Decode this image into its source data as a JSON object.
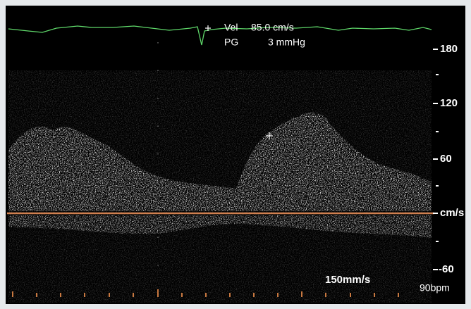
{
  "readout": {
    "vel_label": "Vel",
    "vel_value": "85.0 cm/s",
    "pg_label": "PG",
    "pg_value": "3 mmHg"
  },
  "scale": {
    "labels": [
      "180",
      "120",
      "60",
      "cm/s",
      "-60"
    ]
  },
  "footer": {
    "sweep": "150mm/s",
    "heart_rate": "90bpm"
  }
}
